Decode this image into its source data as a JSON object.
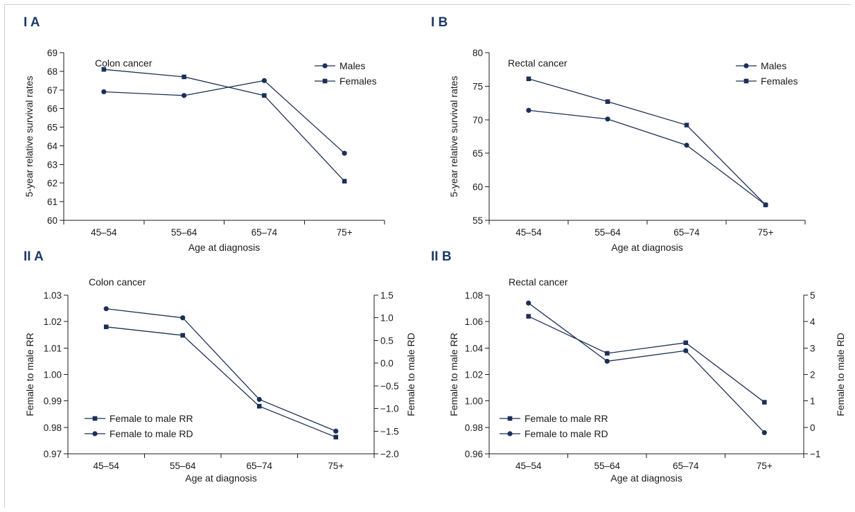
{
  "chart_data": [
    {
      "panel": "I A",
      "type": "line",
      "title": "Colon cancer",
      "xlabel": "Age at diagnosis",
      "ylabel": "5-year relative survival rates",
      "categories": [
        "45–54",
        "55–64",
        "65–74",
        "75+"
      ],
      "ylim": [
        60,
        69
      ],
      "yticks": [
        "60",
        "61",
        "62",
        "63",
        "64",
        "65",
        "66",
        "67",
        "68",
        "69"
      ],
      "legend_position": "top-right",
      "grid": false,
      "series": [
        {
          "name": "Males",
          "marker": "circle",
          "values": [
            66.9,
            66.7,
            67.5,
            63.6
          ]
        },
        {
          "name": "Females",
          "marker": "square",
          "values": [
            68.1,
            67.7,
            66.7,
            62.1
          ]
        }
      ]
    },
    {
      "panel": "I B",
      "type": "line",
      "title": "Rectal cancer",
      "xlabel": "Age at diagnosis",
      "ylabel": "5-year relative survival rates",
      "categories": [
        "45–54",
        "55–64",
        "65–74",
        "75+"
      ],
      "ylim": [
        55,
        80
      ],
      "yticks": [
        "55",
        "60",
        "65",
        "70",
        "75",
        "80"
      ],
      "legend_position": "top-right",
      "grid": false,
      "series": [
        {
          "name": "Males",
          "marker": "circle",
          "values": [
            71.4,
            70.1,
            66.2,
            57.3
          ]
        },
        {
          "name": "Females",
          "marker": "square",
          "values": [
            76.1,
            72.7,
            69.2,
            57.3
          ]
        }
      ]
    },
    {
      "panel": "II A",
      "type": "line",
      "title": "Colon cancer",
      "xlabel": "Age at diagnosis",
      "ylabel": "Female to male RR",
      "ylabel_right": "Female to male RD",
      "categories": [
        "45–54",
        "55–64",
        "65–74",
        "75+"
      ],
      "ylim": [
        0.97,
        1.03
      ],
      "yticks": [
        "0.97",
        "0.98",
        "0.99",
        "1.00",
        "1.01",
        "1.02",
        "1.03"
      ],
      "ylim_right": [
        -2.0,
        1.5
      ],
      "yticks_right": [
        "−2.0",
        "−1.5",
        "−1.0",
        "−0.5",
        "0.0",
        "0.5",
        "1.0",
        "1.5"
      ],
      "legend_position": "bottom-left",
      "grid": false,
      "series": [
        {
          "name": "Female to male RR",
          "marker": "square",
          "axis": "left",
          "values": [
            1.018,
            1.0148,
            0.988,
            0.9763
          ]
        },
        {
          "name": "Female to male RD",
          "marker": "circle",
          "axis": "right",
          "values": [
            1.2,
            1.0,
            -0.8,
            -1.5
          ]
        }
      ]
    },
    {
      "panel": "II B",
      "type": "line",
      "title": "Rectal cancer",
      "xlabel": "Age at diagnosis",
      "ylabel": "Female to male RR",
      "ylabel_right": "Female to male RD",
      "categories": [
        "45–54",
        "55–64",
        "65–74",
        "75+"
      ],
      "ylim": [
        0.96,
        1.08
      ],
      "yticks": [
        "0.96",
        "0.98",
        "1.00",
        "1.02",
        "1.04",
        "1.06",
        "1.08"
      ],
      "ylim_right": [
        -1,
        5
      ],
      "yticks_right": [
        "−1",
        "0",
        "1",
        "2",
        "3",
        "4",
        "5"
      ],
      "legend_position": "bottom-left",
      "grid": false,
      "series": [
        {
          "name": "Female to male RR",
          "marker": "square",
          "axis": "left",
          "values": [
            1.064,
            1.036,
            1.044,
            0.999
          ]
        },
        {
          "name": "Female to male RD",
          "marker": "circle",
          "axis": "right",
          "values": [
            4.7,
            2.5,
            2.9,
            -0.2
          ]
        }
      ]
    }
  ],
  "colors": {
    "series": "#1b2f57",
    "panel_label": "#1b3a6b",
    "axis": "#1a1a1a"
  }
}
